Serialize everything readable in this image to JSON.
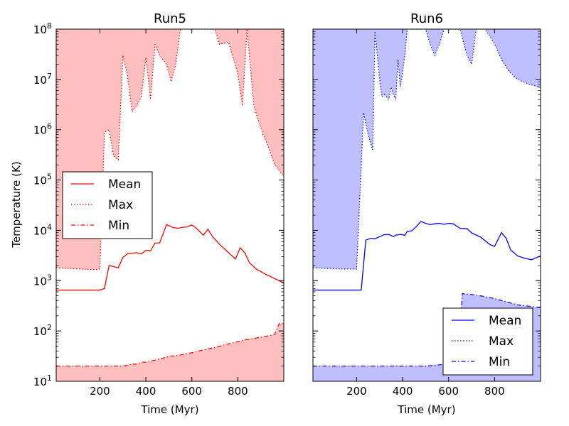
{
  "figure": {
    "ylabel": "Temperature (K)"
  },
  "chart_data": [
    {
      "type": "line",
      "title": "Run5",
      "xlabel": "Time (Myr)",
      "ylabel": "Temperature (K)",
      "xlim": [
        10,
        1000
      ],
      "ylim": [
        10,
        100000000
      ],
      "yscale": "log",
      "xticks": [
        200,
        400,
        600,
        800
      ],
      "xtick_labels": [
        "200",
        "400",
        "600",
        "800"
      ],
      "yticks": [
        10,
        100,
        1000,
        10000,
        100000,
        1000000,
        10000000,
        100000000
      ],
      "ytick_bases": [
        "10",
        "10",
        "10",
        "10",
        "10",
        "10",
        "10",
        "10"
      ],
      "ytick_exps": [
        "1",
        "2",
        "3",
        "4",
        "5",
        "6",
        "7",
        "8"
      ],
      "color": "#ff0000",
      "fill_color": "#ffbfbf",
      "legend": {
        "position": "center-left",
        "entries": [
          "Mean",
          "Max",
          "Min"
        ]
      },
      "series": [
        {
          "name": "Mean",
          "style": "solid",
          "x": [
            10,
            200,
            220,
            240,
            260,
            280,
            300,
            320,
            340,
            360,
            380,
            400,
            410,
            420,
            440,
            460,
            490,
            520,
            540,
            560,
            580,
            600,
            620,
            650,
            670,
            690,
            720,
            760,
            790,
            810,
            830,
            850,
            880,
            920,
            960,
            1000
          ],
          "y": [
            650,
            650,
            700,
            2000,
            1900,
            1800,
            2900,
            3400,
            3500,
            3600,
            3400,
            4000,
            4000,
            3900,
            5600,
            5600,
            13000,
            11300,
            11000,
            11500,
            11700,
            12800,
            11000,
            8000,
            10500,
            7500,
            5300,
            3600,
            2700,
            4500,
            3600,
            2300,
            1700,
            1350,
            1100,
            900
          ]
        },
        {
          "name": "Max",
          "style": "dotted",
          "x": [
            10,
            120,
            180,
            200,
            220,
            240,
            260,
            280,
            300,
            320,
            340,
            360,
            380,
            400,
            410,
            420,
            440,
            460,
            490,
            510,
            530,
            550,
            560,
            600,
            650,
            680,
            700,
            720,
            760,
            800,
            820,
            840,
            870,
            890,
            910,
            930,
            960,
            1000
          ],
          "y": [
            1800,
            1700,
            1650,
            1700,
            900000,
            1000000,
            300000,
            250000,
            30000000,
            12000000,
            2300000,
            3000000,
            4500000,
            27000000,
            11000000,
            4000000,
            50000000,
            30000000,
            20000000,
            9000000,
            20000000,
            100000000,
            100000000,
            100000000,
            100000000,
            100000000,
            100000000,
            50000000,
            55000000,
            13000000,
            3000000,
            100000000,
            3000000,
            1500000,
            800000,
            500000,
            200000,
            120000
          ]
        },
        {
          "name": "Min",
          "style": "dashdot",
          "x": [
            10,
            100,
            200,
            300,
            340,
            360,
            380,
            400,
            450,
            500,
            540,
            560,
            600,
            650,
            700,
            750,
            800,
            820,
            900,
            960,
            980,
            1000
          ],
          "y": [
            20,
            20,
            20,
            20,
            22,
            22,
            24,
            24,
            27,
            31,
            33,
            34,
            37,
            42,
            47,
            54,
            61,
            65,
            75,
            85,
            140,
            140
          ]
        }
      ]
    },
    {
      "type": "line",
      "title": "Run6",
      "xlabel": "Time (Myr)",
      "ylabel": "",
      "xlim": [
        10,
        1000
      ],
      "ylim": [
        10,
        100000000
      ],
      "yscale": "log",
      "xticks": [
        200,
        400,
        600,
        800
      ],
      "xtick_labels": [
        "200",
        "400",
        "600",
        "800"
      ],
      "yticks": [
        10,
        100,
        1000,
        10000,
        100000,
        1000000,
        10000000,
        100000000
      ],
      "color": "#0000ff",
      "fill_color": "#bfbfff",
      "legend": {
        "position": "lower-right",
        "entries": [
          "Mean",
          "Max",
          "Min"
        ]
      },
      "series": [
        {
          "name": "Mean",
          "style": "solid",
          "x": [
            10,
            200,
            220,
            240,
            260,
            280,
            300,
            320,
            340,
            360,
            370,
            390,
            410,
            420,
            440,
            460,
            480,
            500,
            520,
            540,
            560,
            580,
            600,
            620,
            650,
            680,
            700,
            740,
            780,
            800,
            830,
            850,
            870,
            900,
            930,
            960,
            1000
          ],
          "y": [
            650,
            650,
            650,
            6400,
            6900,
            6800,
            7500,
            8200,
            8300,
            7500,
            8000,
            8300,
            8000,
            9500,
            9800,
            12000,
            15000,
            13800,
            13000,
            13500,
            13800,
            13200,
            13800,
            13500,
            11000,
            10800,
            8900,
            7300,
            5200,
            4800,
            9000,
            7000,
            4100,
            3100,
            2800,
            2600,
            3100
          ]
        },
        {
          "name": "Max",
          "style": "dotted",
          "x": [
            10,
            150,
            200,
            230,
            250,
            270,
            280,
            300,
            310,
            320,
            340,
            350,
            360,
            370,
            380,
            390,
            410,
            420,
            440,
            450,
            470,
            480,
            490,
            500,
            520,
            540,
            560,
            580,
            600,
            650,
            680,
            700,
            720,
            760,
            800,
            830,
            860,
            900,
            950,
            1000
          ],
          "y": [
            1800,
            1700,
            1700,
            2200000,
            800000,
            400000,
            90000000,
            10000000,
            4500000,
            5000000,
            4000000,
            7000000,
            5000000,
            4000000,
            25000000,
            7000000,
            30000000,
            100000000,
            100000000,
            100000000,
            100000000,
            100000000,
            100000000,
            100000000,
            50000000,
            30000000,
            50000000,
            100000000,
            100000000,
            100000000,
            30000000,
            20000000,
            100000000,
            100000000,
            50000000,
            25000000,
            15000000,
            10000000,
            8000000,
            7000000
          ]
        },
        {
          "name": "Min",
          "style": "dashdot",
          "x": [
            10,
            100,
            200,
            300,
            400,
            500,
            550,
            600,
            640,
            660,
            700,
            750,
            800,
            850,
            900,
            950,
            1000
          ],
          "y": [
            20,
            20,
            20,
            20,
            20,
            20,
            21,
            22,
            25,
            550,
            530,
            490,
            440,
            380,
            330,
            310,
            290
          ]
        }
      ]
    }
  ]
}
